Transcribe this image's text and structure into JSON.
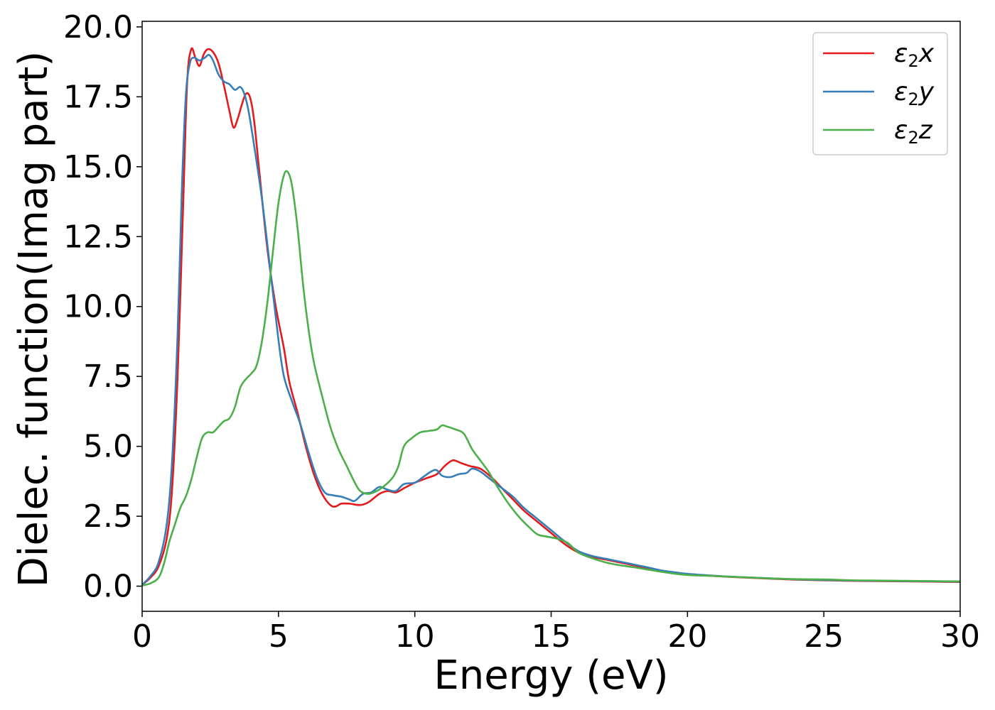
{
  "chart_data": {
    "type": "line",
    "title": "",
    "xlabel": "Energy (eV)",
    "ylabel": "Dielec. function(Imag part)",
    "xlim": [
      0,
      30
    ],
    "ylim": [
      -0.9,
      20.2
    ],
    "xticks": [
      0,
      5,
      10,
      15,
      20,
      25,
      30
    ],
    "xtick_labels": [
      "0",
      "5",
      "10",
      "15",
      "20",
      "25",
      "30"
    ],
    "yticks": [
      0.0,
      2.5,
      5.0,
      7.5,
      10.0,
      12.5,
      15.0,
      17.5,
      20.0
    ],
    "ytick_labels": [
      "0.0",
      "2.5",
      "5.0",
      "7.5",
      "10.0",
      "12.5",
      "15.0",
      "17.5",
      "20.0"
    ],
    "grid": false,
    "legend_position": "top-right",
    "series": [
      {
        "name": "ε₂x",
        "legend_main": "ε",
        "legend_sub": "2",
        "legend_suffix": "x",
        "color": "#e41a1c",
        "points": [
          [
            0,
            0.05
          ],
          [
            0.3,
            0.3
          ],
          [
            0.6,
            0.7
          ],
          [
            0.9,
            1.7
          ],
          [
            1.1,
            3.5
          ],
          [
            1.3,
            7.5
          ],
          [
            1.5,
            13.5
          ],
          [
            1.65,
            18.0
          ],
          [
            1.8,
            19.2
          ],
          [
            1.95,
            18.9
          ],
          [
            2.1,
            18.6
          ],
          [
            2.25,
            19.0
          ],
          [
            2.4,
            19.2
          ],
          [
            2.6,
            19.1
          ],
          [
            2.8,
            18.7
          ],
          [
            3.0,
            17.9
          ],
          [
            3.2,
            17.0
          ],
          [
            3.35,
            16.4
          ],
          [
            3.5,
            16.7
          ],
          [
            3.65,
            17.2
          ],
          [
            3.8,
            17.6
          ],
          [
            3.95,
            17.5
          ],
          [
            4.1,
            16.7
          ],
          [
            4.3,
            14.8
          ],
          [
            4.6,
            12.0
          ],
          [
            4.9,
            10.0
          ],
          [
            5.2,
            8.5
          ],
          [
            5.4,
            7.3
          ],
          [
            5.7,
            6.2
          ],
          [
            6.0,
            5.0
          ],
          [
            6.3,
            4.0
          ],
          [
            6.6,
            3.3
          ],
          [
            6.9,
            2.9
          ],
          [
            7.1,
            2.85
          ],
          [
            7.3,
            2.95
          ],
          [
            7.6,
            2.95
          ],
          [
            8.0,
            2.9
          ],
          [
            8.3,
            3.0
          ],
          [
            8.7,
            3.3
          ],
          [
            9.0,
            3.4
          ],
          [
            9.3,
            3.35
          ],
          [
            9.6,
            3.5
          ],
          [
            10.0,
            3.7
          ],
          [
            10.4,
            3.85
          ],
          [
            10.8,
            4.0
          ],
          [
            11.1,
            4.3
          ],
          [
            11.4,
            4.5
          ],
          [
            11.7,
            4.4
          ],
          [
            12.0,
            4.3
          ],
          [
            12.4,
            4.2
          ],
          [
            12.8,
            3.9
          ],
          [
            13.2,
            3.5
          ],
          [
            13.6,
            3.1
          ],
          [
            14.0,
            2.7
          ],
          [
            14.5,
            2.3
          ],
          [
            15.0,
            1.9
          ],
          [
            15.5,
            1.5
          ],
          [
            16.0,
            1.2
          ],
          [
            16.5,
            1.05
          ],
          [
            17.0,
            0.95
          ],
          [
            17.5,
            0.85
          ],
          [
            18.0,
            0.75
          ],
          [
            18.5,
            0.65
          ],
          [
            19.0,
            0.55
          ],
          [
            19.5,
            0.48
          ],
          [
            20.0,
            0.42
          ],
          [
            21.0,
            0.36
          ],
          [
            22.0,
            0.31
          ],
          [
            23.0,
            0.27
          ],
          [
            24.0,
            0.23
          ],
          [
            25.0,
            0.21
          ],
          [
            26.0,
            0.19
          ],
          [
            27.0,
            0.18
          ],
          [
            28.0,
            0.17
          ],
          [
            29.0,
            0.16
          ],
          [
            30.0,
            0.15
          ]
        ]
      },
      {
        "name": "ε₂y",
        "legend_main": "ε",
        "legend_sub": "2",
        "legend_suffix": "y",
        "color": "#377eb8",
        "points": [
          [
            0,
            0.05
          ],
          [
            0.3,
            0.35
          ],
          [
            0.6,
            0.85
          ],
          [
            0.9,
            2.2
          ],
          [
            1.1,
            4.5
          ],
          [
            1.3,
            9.0
          ],
          [
            1.45,
            14.0
          ],
          [
            1.6,
            17.5
          ],
          [
            1.75,
            18.7
          ],
          [
            1.9,
            18.9
          ],
          [
            2.1,
            18.8
          ],
          [
            2.3,
            18.9
          ],
          [
            2.45,
            19.0
          ],
          [
            2.6,
            18.8
          ],
          [
            2.8,
            18.3
          ],
          [
            3.0,
            18.05
          ],
          [
            3.2,
            17.95
          ],
          [
            3.4,
            17.75
          ],
          [
            3.6,
            17.85
          ],
          [
            3.75,
            17.6
          ],
          [
            3.9,
            17.0
          ],
          [
            4.1,
            15.8
          ],
          [
            4.4,
            13.8
          ],
          [
            4.7,
            11.3
          ],
          [
            5.0,
            8.8
          ],
          [
            5.2,
            7.5
          ],
          [
            5.5,
            6.6
          ],
          [
            5.8,
            5.8
          ],
          [
            6.1,
            4.8
          ],
          [
            6.4,
            3.9
          ],
          [
            6.7,
            3.35
          ],
          [
            7.0,
            3.25
          ],
          [
            7.3,
            3.2
          ],
          [
            7.6,
            3.1
          ],
          [
            7.8,
            3.05
          ],
          [
            8.1,
            3.3
          ],
          [
            8.4,
            3.35
          ],
          [
            8.7,
            3.55
          ],
          [
            9.0,
            3.45
          ],
          [
            9.3,
            3.4
          ],
          [
            9.6,
            3.65
          ],
          [
            10.0,
            3.7
          ],
          [
            10.3,
            3.9
          ],
          [
            10.6,
            4.1
          ],
          [
            10.8,
            4.15
          ],
          [
            11.0,
            3.95
          ],
          [
            11.3,
            3.9
          ],
          [
            11.6,
            4.0
          ],
          [
            11.9,
            4.05
          ],
          [
            12.1,
            4.2
          ],
          [
            12.4,
            4.1
          ],
          [
            12.8,
            3.8
          ],
          [
            13.2,
            3.5
          ],
          [
            13.6,
            3.2
          ],
          [
            14.0,
            2.8
          ],
          [
            14.5,
            2.4
          ],
          [
            15.0,
            2.0
          ],
          [
            15.5,
            1.6
          ],
          [
            16.0,
            1.25
          ],
          [
            16.5,
            1.08
          ],
          [
            17.0,
            0.98
          ],
          [
            17.5,
            0.88
          ],
          [
            18.0,
            0.78
          ],
          [
            18.5,
            0.68
          ],
          [
            19.0,
            0.57
          ],
          [
            19.5,
            0.5
          ],
          [
            20.0,
            0.44
          ],
          [
            21.0,
            0.37
          ],
          [
            22.0,
            0.32
          ],
          [
            23.0,
            0.28
          ],
          [
            24.0,
            0.24
          ],
          [
            25.0,
            0.22
          ],
          [
            26.0,
            0.2
          ],
          [
            27.0,
            0.19
          ],
          [
            28.0,
            0.18
          ],
          [
            29.0,
            0.17
          ],
          [
            30.0,
            0.16
          ]
        ]
      },
      {
        "name": "ε₂z",
        "legend_main": "ε",
        "legend_sub": "2",
        "legend_suffix": "z",
        "color": "#4daf4a",
        "points": [
          [
            0,
            0.02
          ],
          [
            0.3,
            0.1
          ],
          [
            0.6,
            0.3
          ],
          [
            0.8,
            0.8
          ],
          [
            1.0,
            1.6
          ],
          [
            1.2,
            2.2
          ],
          [
            1.4,
            2.8
          ],
          [
            1.6,
            3.2
          ],
          [
            1.8,
            3.8
          ],
          [
            2.0,
            4.6
          ],
          [
            2.2,
            5.3
          ],
          [
            2.4,
            5.5
          ],
          [
            2.6,
            5.5
          ],
          [
            2.8,
            5.7
          ],
          [
            3.0,
            5.9
          ],
          [
            3.2,
            6.0
          ],
          [
            3.4,
            6.4
          ],
          [
            3.6,
            7.1
          ],
          [
            3.8,
            7.4
          ],
          [
            4.0,
            7.6
          ],
          [
            4.2,
            7.9
          ],
          [
            4.4,
            8.8
          ],
          [
            4.6,
            10.2
          ],
          [
            4.8,
            12.0
          ],
          [
            5.0,
            13.7
          ],
          [
            5.2,
            14.7
          ],
          [
            5.35,
            14.8
          ],
          [
            5.5,
            14.3
          ],
          [
            5.7,
            12.8
          ],
          [
            5.9,
            10.8
          ],
          [
            6.1,
            9.2
          ],
          [
            6.3,
            8.0
          ],
          [
            6.6,
            6.8
          ],
          [
            6.9,
            5.7
          ],
          [
            7.2,
            4.9
          ],
          [
            7.5,
            4.3
          ],
          [
            7.8,
            3.7
          ],
          [
            8.0,
            3.4
          ],
          [
            8.3,
            3.3
          ],
          [
            8.6,
            3.4
          ],
          [
            8.9,
            3.6
          ],
          [
            9.2,
            3.9
          ],
          [
            9.4,
            4.3
          ],
          [
            9.6,
            5.0
          ],
          [
            9.9,
            5.3
          ],
          [
            10.2,
            5.5
          ],
          [
            10.5,
            5.55
          ],
          [
            10.8,
            5.6
          ],
          [
            11.0,
            5.75
          ],
          [
            11.2,
            5.7
          ],
          [
            11.5,
            5.6
          ],
          [
            11.8,
            5.45
          ],
          [
            12.1,
            4.9
          ],
          [
            12.4,
            4.5
          ],
          [
            12.7,
            4.1
          ],
          [
            13.0,
            3.6
          ],
          [
            13.4,
            3.0
          ],
          [
            13.8,
            2.5
          ],
          [
            14.2,
            2.1
          ],
          [
            14.5,
            1.85
          ],
          [
            14.8,
            1.78
          ],
          [
            15.2,
            1.7
          ],
          [
            15.6,
            1.55
          ],
          [
            16.0,
            1.2
          ],
          [
            16.5,
            1.0
          ],
          [
            17.0,
            0.85
          ],
          [
            17.5,
            0.75
          ],
          [
            18.0,
            0.68
          ],
          [
            18.5,
            0.6
          ],
          [
            19.0,
            0.52
          ],
          [
            19.5,
            0.45
          ],
          [
            20.0,
            0.4
          ],
          [
            21.0,
            0.36
          ],
          [
            22.0,
            0.32
          ],
          [
            23.0,
            0.28
          ],
          [
            24.0,
            0.25
          ],
          [
            25.0,
            0.24
          ],
          [
            26.0,
            0.21
          ],
          [
            27.0,
            0.2
          ],
          [
            28.0,
            0.19
          ],
          [
            29.0,
            0.18
          ],
          [
            30.0,
            0.17
          ]
        ]
      }
    ]
  }
}
